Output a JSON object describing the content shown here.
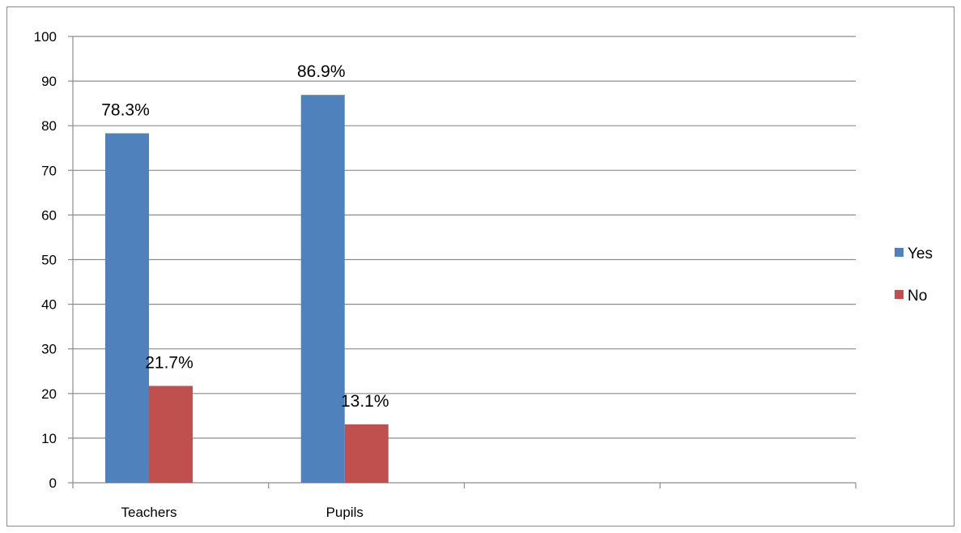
{
  "chart_data": {
    "type": "bar",
    "categories": [
      "Teachers",
      "Pupils",
      "",
      ""
    ],
    "series": [
      {
        "name": "Yes",
        "values": [
          78.3,
          86.9,
          null,
          null
        ],
        "labels": [
          "78.3%",
          "86.9%",
          "",
          ""
        ],
        "color": "#4f81bd"
      },
      {
        "name": "No",
        "values": [
          21.7,
          13.1,
          null,
          null
        ],
        "labels": [
          "21.7%",
          "13.1%",
          "",
          ""
        ],
        "color": "#c0504d"
      }
    ],
    "ylim": [
      0,
      100
    ],
    "yticks": [
      0,
      10,
      20,
      30,
      40,
      50,
      60,
      70,
      80,
      90,
      100
    ],
    "grid": true,
    "legend": "right",
    "title": "",
    "xlabel": "",
    "ylabel": ""
  }
}
